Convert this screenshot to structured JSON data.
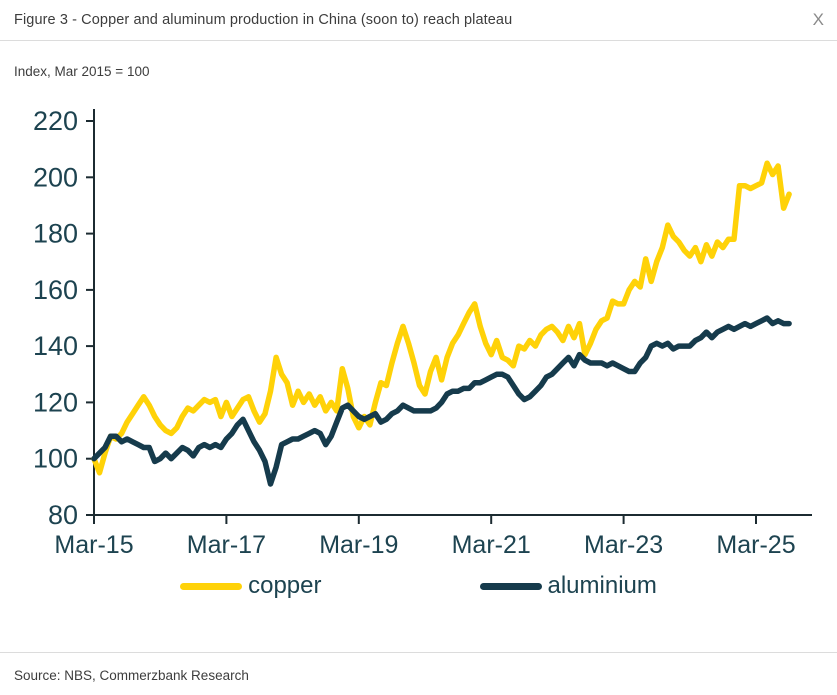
{
  "header": {
    "title": "Figure 3 - Copper and aluminum production in China (soon to) reach plateau",
    "close_label": "X"
  },
  "subtitle": "Index, Mar 2015 = 100",
  "source": "Source: NBS, Commerzbank Research",
  "colors": {
    "copper": "#FFD208",
    "aluminium": "#163B4C",
    "axis_line": "#1c2b31",
    "tick_label": "#1d4350",
    "text": "#3d3d3d",
    "divider": "#dcdcdc",
    "close": "#8a8a8a"
  },
  "chart_data": {
    "type": "line",
    "title": "Copper and aluminum production in China",
    "index_note": "Index, Mar 2015 = 100",
    "x_unit": "month",
    "x_start": "Mar-2015",
    "x_end": "Sep-2025",
    "x_interval": "monthly",
    "x_tick_labels": [
      "Mar-15",
      "Mar-17",
      "Mar-19",
      "Mar-21",
      "Mar-23",
      "Mar-25"
    ],
    "x_tick_month_index": [
      0,
      24,
      48,
      72,
      96,
      120
    ],
    "ylim": [
      80,
      220
    ],
    "y_ticks": [
      80,
      100,
      120,
      140,
      160,
      180,
      200,
      220
    ],
    "grid": false,
    "legend_position": "bottom",
    "series": [
      {
        "name": "copper",
        "color": "#FFD208",
        "values": [
          100,
          95,
          102,
          108,
          107,
          109,
          113,
          116,
          119,
          122,
          119,
          115,
          112,
          110,
          109,
          111,
          115,
          118,
          117,
          119,
          121,
          120,
          121,
          115,
          120,
          115,
          118,
          121,
          122,
          117,
          113,
          116,
          124,
          136,
          130,
          127,
          119,
          124,
          120,
          123,
          119,
          122,
          117,
          120,
          117,
          132,
          125,
          115,
          111,
          115,
          112,
          120,
          127,
          126,
          134,
          141,
          147,
          141,
          134,
          126,
          123,
          131,
          136,
          128,
          136,
          141,
          144,
          148,
          152,
          155,
          147,
          141,
          137,
          142,
          136,
          135,
          133,
          140,
          139,
          142,
          140,
          144,
          146,
          147,
          145,
          142,
          147,
          143,
          148,
          137,
          141,
          146,
          149,
          150,
          156,
          155,
          155,
          160,
          163,
          161,
          171,
          163,
          170,
          175,
          183,
          179,
          177,
          174,
          172,
          175,
          170,
          176,
          172,
          177,
          175,
          178,
          178,
          197,
          197,
          196,
          197,
          198,
          205,
          201,
          204,
          189,
          194
        ]
      },
      {
        "name": "aluminium",
        "color": "#163B4C",
        "values": [
          100,
          102,
          104,
          108,
          108,
          106,
          107,
          106,
          105,
          104,
          104,
          99,
          100,
          102,
          100,
          102,
          104,
          103,
          101,
          104,
          105,
          104,
          105,
          104,
          107,
          109,
          112,
          114,
          110,
          106,
          103,
          99,
          91,
          97,
          105,
          106,
          107,
          107,
          108,
          109,
          110,
          109,
          105,
          108,
          113,
          118,
          119,
          117,
          115,
          114,
          115,
          116,
          113,
          114,
          116,
          117,
          119,
          118,
          117,
          117,
          117,
          117,
          118,
          120,
          123,
          124,
          124,
          125,
          125,
          127,
          127,
          128,
          129,
          130,
          130,
          129,
          126,
          123,
          121,
          122,
          124,
          126,
          129,
          130,
          132,
          134,
          136,
          133,
          137,
          135,
          134,
          134,
          134,
          133,
          134,
          133,
          132,
          131,
          131,
          134,
          136,
          140,
          141,
          140,
          141,
          139,
          140,
          140,
          140,
          142,
          143,
          145,
          143,
          145,
          146,
          147,
          146,
          147,
          148,
          147,
          148,
          149,
          150,
          148,
          149,
          148,
          148
        ]
      }
    ]
  }
}
